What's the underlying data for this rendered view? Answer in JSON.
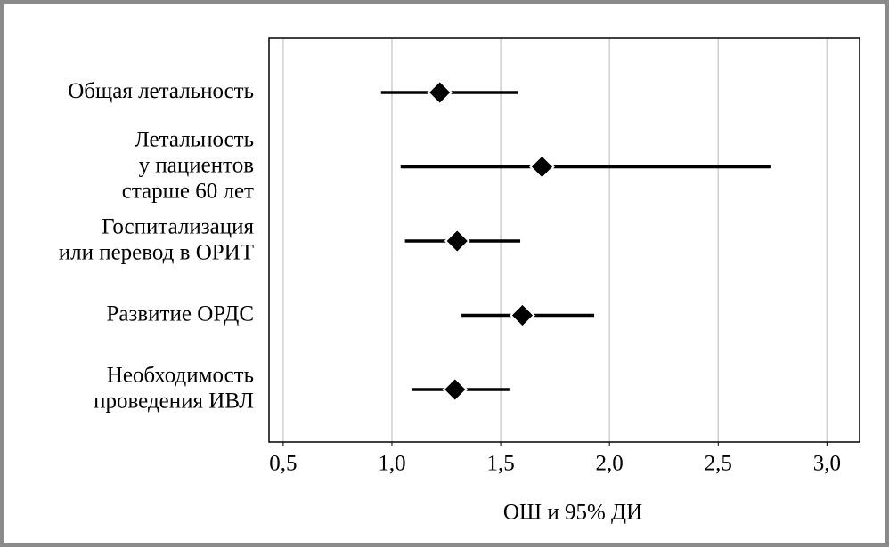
{
  "chart_data": {
    "type": "forest",
    "x_label": "ОШ и 95% ДИ",
    "categories": [
      "Общая летальность",
      "Летальность\nу пациентов\nстарше 60 лет",
      "Госпитализация\nили перевод в ОРИТ",
      "Развитие ОРДС",
      "Необходимость\nпроведения ИВЛ"
    ],
    "values": [
      1.22,
      1.69,
      1.3,
      1.6,
      1.29
    ],
    "lower": [
      0.95,
      1.04,
      1.06,
      1.32,
      1.09
    ],
    "upper": [
      1.58,
      2.74,
      1.59,
      1.93,
      1.54
    ],
    "color": "#000000",
    "xlim": [
      0.435,
      3.15
    ],
    "xticks": [
      {
        "value": 0.5,
        "label": "0,5"
      },
      {
        "value": 1.0,
        "label": "1,0"
      },
      {
        "value": 1.5,
        "label": "1,5"
      },
      {
        "value": 2.0,
        "label": "2,0"
      },
      {
        "value": 2.5,
        "label": "2,5"
      },
      {
        "value": 3.0,
        "label": "3,0"
      }
    ],
    "grid": true
  }
}
